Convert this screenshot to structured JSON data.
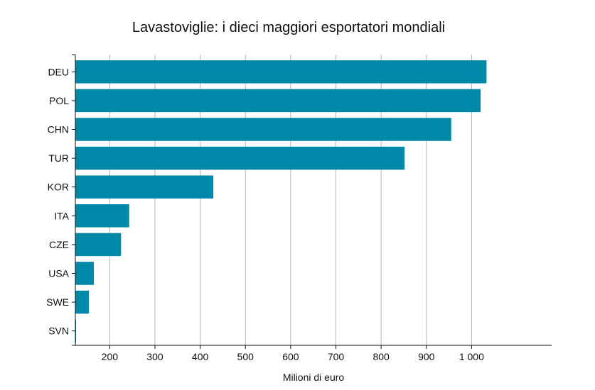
{
  "chart_data": {
    "type": "bar",
    "orientation": "horizontal",
    "title": "Lavastoviglie: i dieci maggiori esportatori mondiali",
    "xlabel": "Milioni di euro",
    "ylabel": "",
    "categories": [
      "DEU",
      "POL",
      "CHN",
      "TUR",
      "KOR",
      "ITA",
      "CZE",
      "USA",
      "SWE",
      "SVN"
    ],
    "values": [
      1033,
      1020,
      955,
      852,
      429,
      243,
      225,
      165,
      154,
      123
    ],
    "xlim": [
      124,
      1177
    ],
    "xticks": [
      200,
      300,
      400,
      500,
      600,
      700,
      800,
      900,
      1000
    ],
    "xtick_labels": [
      "200",
      "300",
      "400",
      "500",
      "600",
      "700",
      "800",
      "900",
      "1 000"
    ],
    "bar_color": "#0088A8",
    "grid": "vertical"
  }
}
